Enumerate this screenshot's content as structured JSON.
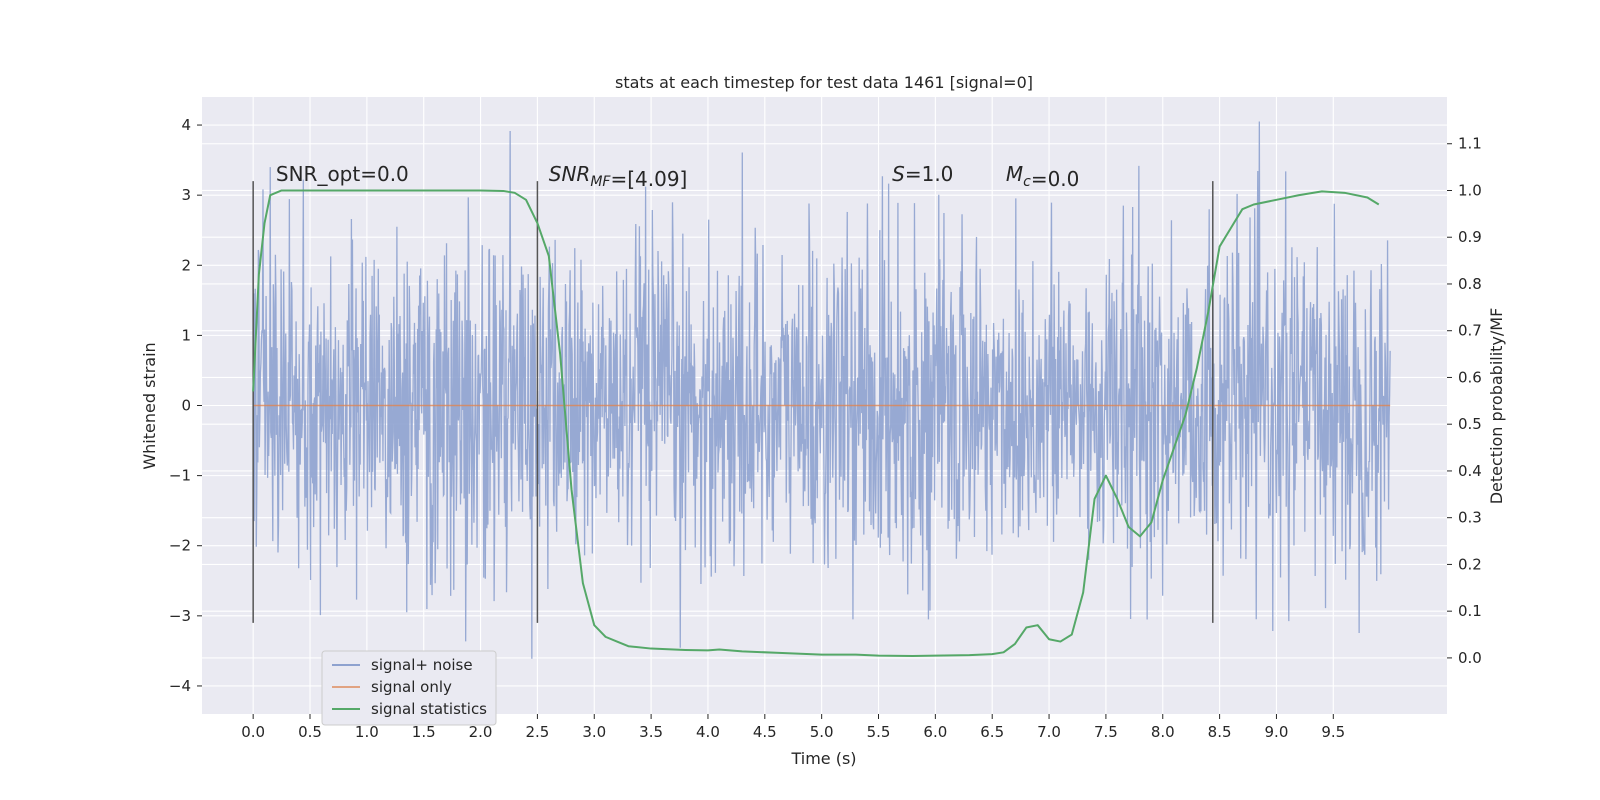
{
  "chart_data": {
    "type": "line",
    "title": "stats at each timestep for test data 1461 [signal=0]",
    "xlabel": "Time (s)",
    "ylabel": "Whitened strain",
    "y2label": "Detection probability/MF",
    "xlim": [
      -0.45,
      10.5
    ],
    "ylim": [
      -4.4,
      4.4
    ],
    "y2lim": [
      -0.12,
      1.2
    ],
    "xticks": [
      0.0,
      0.5,
      1.0,
      1.5,
      2.0,
      2.5,
      3.0,
      3.5,
      4.0,
      4.5,
      5.0,
      5.5,
      6.0,
      6.5,
      7.0,
      7.5,
      8.0,
      8.5,
      9.0,
      9.5
    ],
    "xtick_labels": [
      "0.0",
      "0.5",
      "1.0",
      "1.5",
      "2.0",
      "2.5",
      "3.0",
      "3.5",
      "4.0",
      "4.5",
      "5.0",
      "5.5",
      "6.0",
      "6.5",
      "7.0",
      "7.5",
      "8.0",
      "8.5",
      "9.0",
      "9.5"
    ],
    "yticks": [
      -4,
      -3,
      -2,
      -1,
      0,
      1,
      2,
      3,
      4
    ],
    "ytick_labels": [
      "−4",
      "−3",
      "−2",
      "−1",
      "0",
      "1",
      "2",
      "3",
      "4"
    ],
    "y2ticks": [
      0.0,
      0.1,
      0.2,
      0.3,
      0.4,
      0.5,
      0.6,
      0.7,
      0.8,
      0.9,
      1.0,
      1.1
    ],
    "y2tick_labels": [
      "0.0",
      "0.1",
      "0.2",
      "0.3",
      "0.4",
      "0.5",
      "0.6",
      "0.7",
      "0.8",
      "0.9",
      "1.0",
      "1.1"
    ],
    "grid": true,
    "legend_position": "bottom-left",
    "series": [
      {
        "name": "signal+ noise",
        "axis": "left",
        "color": "#8ea2cf",
        "x_range": [
          0.0,
          10.0
        ],
        "envelope_p10": [
          1.2,
          -1.2
        ],
        "envelope_p50": [
          1.9,
          -1.9
        ],
        "envelope_p90": [
          2.5,
          -2.5
        ],
        "max": 4.05,
        "min": -3.93
      },
      {
        "name": "signal only",
        "axis": "left",
        "color": "#dd8452",
        "x": [
          0.0,
          10.0
        ],
        "y": [
          0.0,
          0.0
        ]
      },
      {
        "name": "signal statistics",
        "axis": "right",
        "color": "#55a868",
        "x": [
          0.0,
          0.05,
          0.1,
          0.15,
          0.25,
          0.5,
          1.0,
          1.5,
          2.0,
          2.2,
          2.3,
          2.4,
          2.5,
          2.6,
          2.7,
          2.8,
          2.9,
          3.0,
          3.1,
          3.2,
          3.3,
          3.5,
          3.8,
          4.0,
          4.1,
          4.3,
          4.6,
          5.0,
          5.3,
          5.5,
          5.8,
          6.0,
          6.3,
          6.5,
          6.6,
          6.7,
          6.8,
          6.9,
          7.0,
          7.1,
          7.2,
          7.3,
          7.4,
          7.5,
          7.6,
          7.7,
          7.8,
          7.9,
          8.0,
          8.1,
          8.2,
          8.3,
          8.4,
          8.5,
          8.6,
          8.7,
          8.8,
          9.0,
          9.2,
          9.4,
          9.6,
          9.8,
          9.9
        ],
        "y": [
          0.57,
          0.82,
          0.93,
          0.99,
          1.0,
          1.0,
          1.0,
          1.0,
          1.0,
          0.999,
          0.995,
          0.98,
          0.93,
          0.86,
          0.65,
          0.36,
          0.16,
          0.07,
          0.045,
          0.035,
          0.025,
          0.02,
          0.017,
          0.016,
          0.018,
          0.014,
          0.011,
          0.007,
          0.007,
          0.005,
          0.004,
          0.005,
          0.006,
          0.008,
          0.012,
          0.03,
          0.065,
          0.07,
          0.04,
          0.035,
          0.05,
          0.14,
          0.34,
          0.39,
          0.34,
          0.28,
          0.26,
          0.29,
          0.38,
          0.45,
          0.52,
          0.62,
          0.74,
          0.88,
          0.92,
          0.96,
          0.97,
          0.98,
          0.99,
          0.998,
          0.995,
          0.985,
          0.97
        ]
      }
    ],
    "vlines": [
      {
        "x": 0.0,
        "ymin": -3.1,
        "ymax": 3.2
      },
      {
        "x": 2.5,
        "ymin": -3.1,
        "ymax": 3.2
      },
      {
        "x": 8.44,
        "ymin": -3.1,
        "ymax": 3.2
      }
    ],
    "annotations": [
      {
        "x": 0.2,
        "y": 3.2,
        "parts": [
          {
            "text": "SNR_opt=0.0",
            "italic": false
          }
        ]
      },
      {
        "x": 2.6,
        "y": 3.2,
        "parts": [
          {
            "text": "SNR",
            "italic": true
          },
          {
            "text": "MF",
            "italic": true,
            "sub": true
          },
          {
            "text": "=[4.09]",
            "italic": false
          }
        ]
      },
      {
        "x": 5.62,
        "y": 3.2,
        "parts": [
          {
            "text": "S",
            "italic": true
          },
          {
            "text": "=1.0",
            "italic": false
          }
        ]
      },
      {
        "x": 6.62,
        "y": 3.2,
        "parts": [
          {
            "text": "M",
            "italic": true
          },
          {
            "text": "c",
            "italic": true,
            "sub": true
          },
          {
            "text": "=0.0",
            "italic": false
          }
        ]
      }
    ],
    "colors": {
      "background": "#eaeaf2",
      "grid": "#ffffff",
      "vline": "#555555",
      "text": "#262626"
    }
  }
}
